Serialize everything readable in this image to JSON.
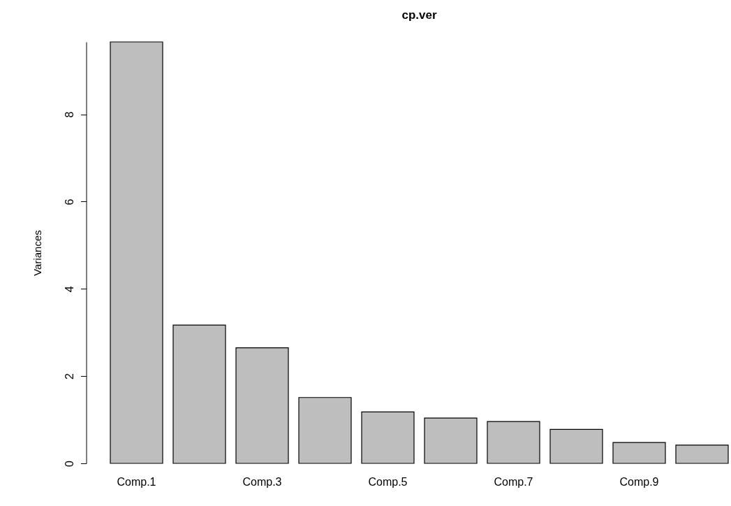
{
  "chart_data": {
    "type": "bar",
    "title": "cp.ver",
    "ylabel": "Variances",
    "categories": [
      "Comp.1",
      null,
      "Comp.3",
      null,
      "Comp.5",
      null,
      "Comp.7",
      null,
      "Comp.9",
      null
    ],
    "values": [
      9.66,
      3.17,
      2.65,
      1.51,
      1.18,
      1.04,
      0.96,
      0.78,
      0.48,
      0.42
    ],
    "color": "#bebebe",
    "ylim": [
      0,
      9.66
    ],
    "yticks": [
      0,
      2,
      4,
      6,
      8
    ],
    "grid": false
  }
}
